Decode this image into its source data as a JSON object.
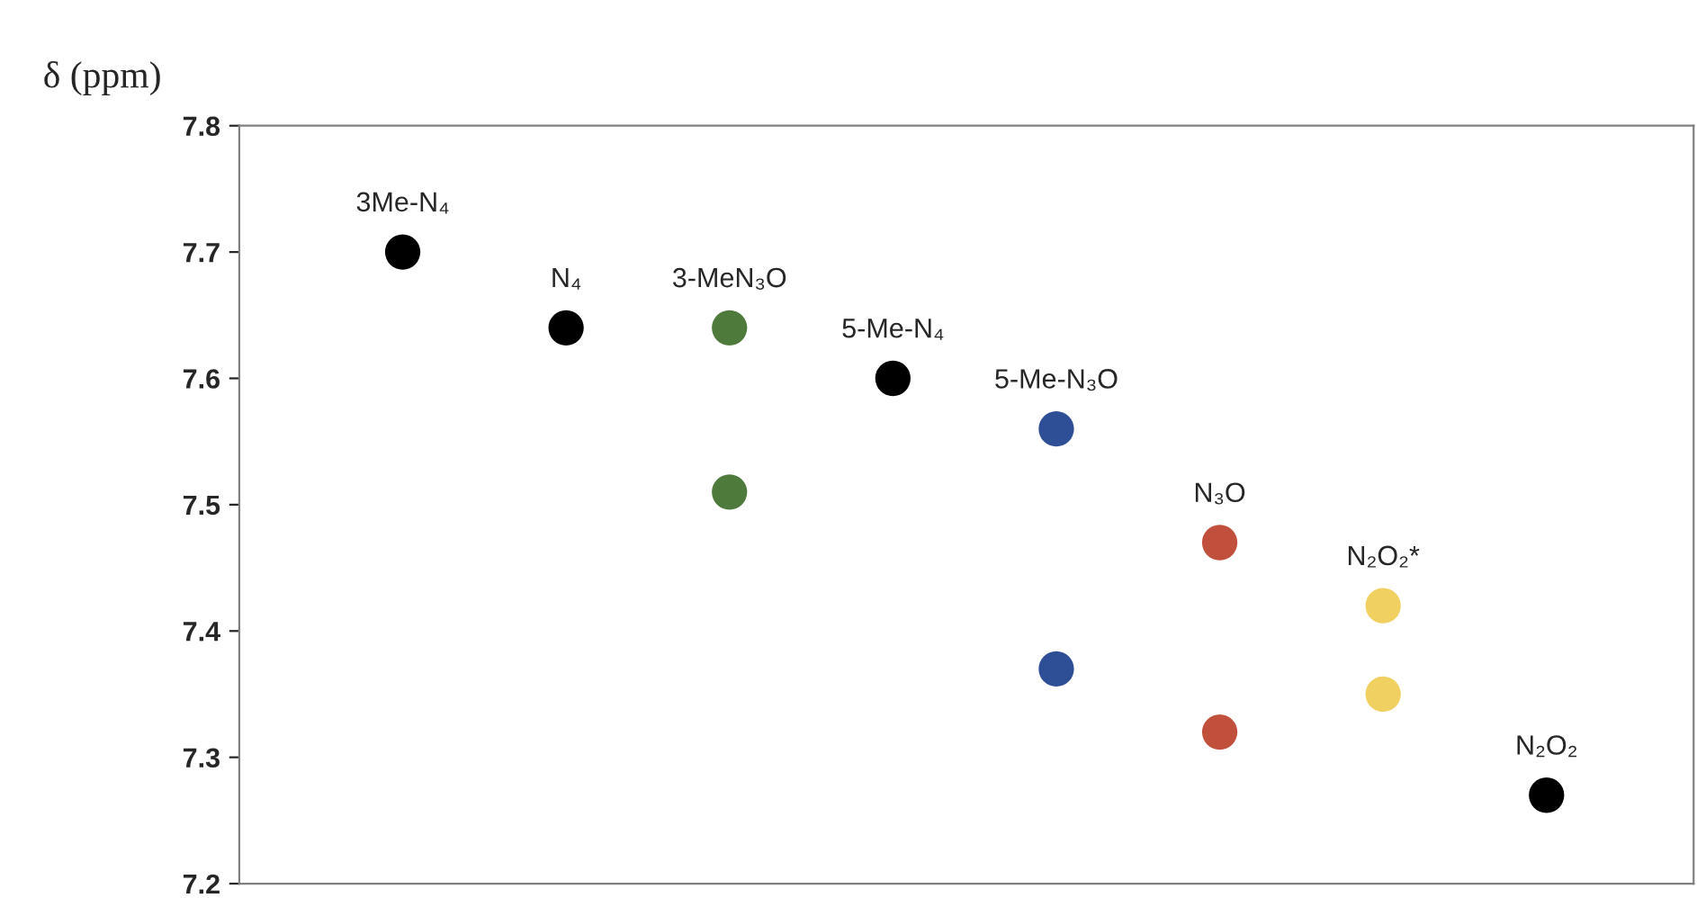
{
  "chart_data": {
    "type": "scatter",
    "ylabel": "δ (ppm)",
    "categories": [
      null,
      null,
      null,
      null,
      null,
      null,
      null,
      null
    ],
    "series": [
      {
        "name": "3Me-N₄",
        "color": "#000000",
        "values": [
          7.7,
          null,
          null,
          null,
          null,
          null,
          null,
          null
        ]
      },
      {
        "name": "N₄",
        "color": "#000000",
        "values": [
          null,
          7.64,
          null,
          null,
          null,
          null,
          null,
          null
        ]
      },
      {
        "name": "3-MeN₃O",
        "color": "#4e7a3c",
        "values": [
          null,
          null,
          7.64,
          null,
          null,
          null,
          null,
          null
        ]
      },
      {
        "color": "#4e7a3c",
        "values": [
          null,
          null,
          7.51,
          null,
          null,
          null,
          null,
          null
        ]
      },
      {
        "name": "5-Me-N₄",
        "color": "#000000",
        "values": [
          null,
          null,
          null,
          7.6,
          null,
          null,
          null,
          null
        ]
      },
      {
        "name": "5-Me-N₃O",
        "color": "#2e4f96",
        "values": [
          null,
          null,
          null,
          null,
          7.56,
          null,
          null,
          null
        ]
      },
      {
        "color": "#2e4f96",
        "values": [
          null,
          null,
          null,
          null,
          7.37,
          null,
          null,
          null
        ]
      },
      {
        "name": "N₃O",
        "color": "#c0503c",
        "values": [
          null,
          null,
          null,
          null,
          null,
          7.47,
          null,
          null
        ]
      },
      {
        "color": "#c0503c",
        "values": [
          null,
          null,
          null,
          null,
          null,
          7.32,
          null,
          null
        ]
      },
      {
        "name": "N₂O₂*",
        "color": "#f0d060",
        "values": [
          null,
          null,
          null,
          null,
          null,
          null,
          7.42,
          null
        ]
      },
      {
        "color": "#f0d060",
        "values": [
          null,
          null,
          null,
          null,
          null,
          null,
          7.35,
          null
        ]
      },
      {
        "name": "N₂O₂",
        "color": "#000000",
        "values": [
          null,
          null,
          null,
          null,
          null,
          null,
          null,
          7.27
        ]
      }
    ],
    "ylim": [
      7.2,
      7.8
    ],
    "yticks": [
      7.2,
      7.3,
      7.4,
      7.5,
      7.6,
      7.7,
      7.8
    ],
    "marker": "circle",
    "grid": false,
    "legend": false
  }
}
